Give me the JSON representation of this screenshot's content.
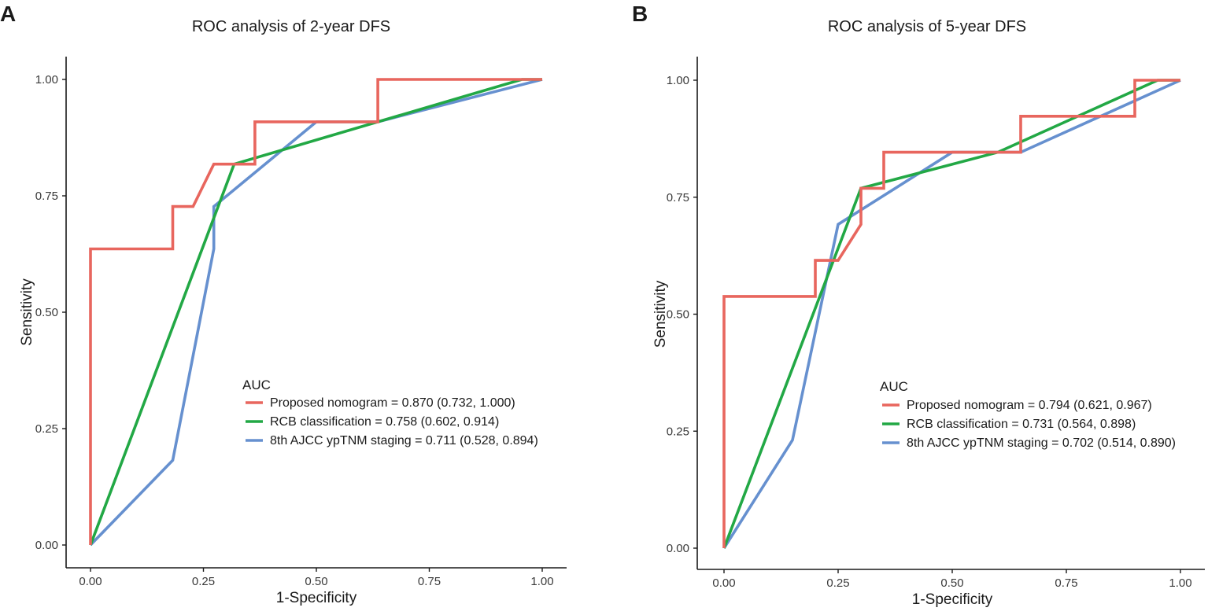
{
  "chart_data": [
    {
      "type": "line",
      "panel_label": "A",
      "title": "ROC analysis of 2-year DFS",
      "xlabel": "1-Specificity",
      "ylabel": "Sensitivity",
      "xlim": [
        0,
        1
      ],
      "ylim": [
        0,
        1
      ],
      "x_ticks": [
        "0.00",
        "0.25",
        "0.50",
        "0.75",
        "1.00"
      ],
      "y_ticks": [
        "0.00",
        "0.25",
        "0.50",
        "0.75",
        "1.00"
      ],
      "legend_title": "AUC",
      "legend_position": "center-right",
      "series": [
        {
          "name": "Proposed nomogram = 0.870 (0.732, 1.000)",
          "color": "#e8665e",
          "x": [
            0,
            0,
            0.182,
            0.182,
            0.227,
            0.273,
            0.318,
            0.364,
            0.364,
            0.636,
            0.636,
            1.0
          ],
          "y": [
            0,
            0.636,
            0.636,
            0.727,
            0.727,
            0.818,
            0.818,
            0.818,
            0.909,
            0.909,
            1.0,
            1.0
          ]
        },
        {
          "name": "RCB classification = 0.758 (0.602, 0.914)",
          "color": "#22a845",
          "x": [
            0,
            0.318,
            0.955,
            1.0
          ],
          "y": [
            0,
            0.818,
            1.0,
            1.0
          ]
        },
        {
          "name": "8th AJCC ypTNM staging = 0.711 (0.528, 0.894)",
          "color": "#6690cf",
          "x": [
            0,
            0.182,
            0.273,
            0.273,
            0.5,
            0.636,
            1.0
          ],
          "y": [
            0,
            0.182,
            0.636,
            0.727,
            0.909,
            0.909,
            1.0
          ]
        }
      ]
    },
    {
      "type": "line",
      "panel_label": "B",
      "title": "ROC analysis of 5-year DFS",
      "xlabel": "1-Specificity",
      "ylabel": "Sensitivity",
      "xlim": [
        0,
        1
      ],
      "ylim": [
        0,
        1
      ],
      "x_ticks": [
        "0.00",
        "0.25",
        "0.50",
        "0.75",
        "1.00"
      ],
      "y_ticks": [
        "0.00",
        "0.25",
        "0.50",
        "0.75",
        "1.00"
      ],
      "legend_title": "AUC",
      "legend_position": "center-right",
      "series": [
        {
          "name": "Proposed nomogram = 0.794 (0.621, 0.967)",
          "color": "#e8665e",
          "x": [
            0,
            0,
            0.2,
            0.2,
            0.25,
            0.3,
            0.3,
            0.35,
            0.35,
            0.65,
            0.65,
            0.9,
            0.9,
            1.0
          ],
          "y": [
            0,
            0.538,
            0.538,
            0.615,
            0.615,
            0.692,
            0.769,
            0.769,
            0.846,
            0.846,
            0.923,
            0.923,
            1.0,
            1.0
          ]
        },
        {
          "name": "RCB classification = 0.731 (0.564, 0.898)",
          "color": "#22a845",
          "x": [
            0,
            0.3,
            0.6,
            0.95,
            1.0
          ],
          "y": [
            0,
            0.769,
            0.846,
            1.0,
            1.0
          ]
        },
        {
          "name": "8th AJCC ypTNM staging = 0.702 (0.514, 0.890)",
          "color": "#6690cf",
          "x": [
            0,
            0.15,
            0.25,
            0.5,
            0.65,
            1.0
          ],
          "y": [
            0,
            0.231,
            0.692,
            0.846,
            0.846,
            1.0
          ]
        }
      ]
    }
  ]
}
